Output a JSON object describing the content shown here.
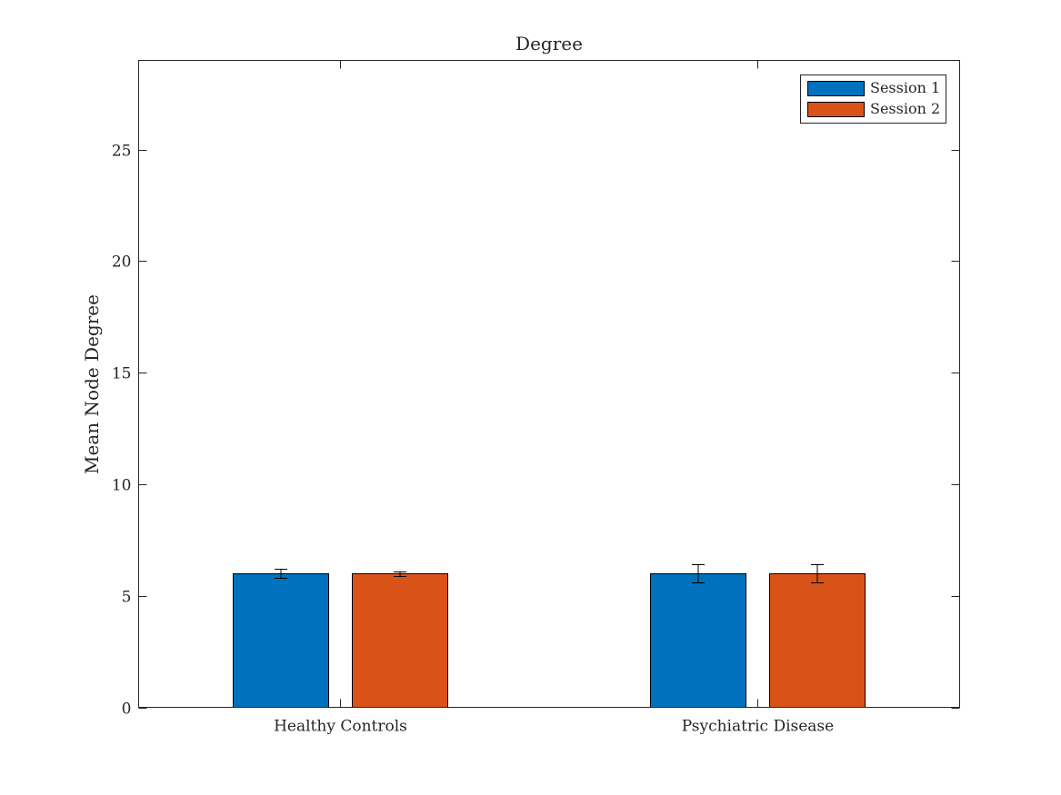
{
  "chart_data": {
    "type": "bar",
    "title": "Degree",
    "xlabel": "",
    "ylabel": "Mean Node Degree",
    "categories": [
      "Healthy Controls",
      "Psychiatric Disease"
    ],
    "series": [
      {
        "name": "Session 1",
        "color": "#0072BD",
        "values": [
          6.0,
          6.0
        ],
        "error": [
          0.2,
          0.4
        ]
      },
      {
        "name": "Session 2",
        "color": "#D95319",
        "values": [
          6.0,
          6.0
        ],
        "error": [
          0.1,
          0.4
        ]
      }
    ],
    "ylim": [
      0,
      29
    ],
    "yticks": [
      0,
      5,
      10,
      15,
      20,
      25
    ],
    "ytick_labels": [
      "0",
      "5",
      "10",
      "15",
      "20",
      "25"
    ],
    "grid": false,
    "legend_position": "top-right"
  }
}
